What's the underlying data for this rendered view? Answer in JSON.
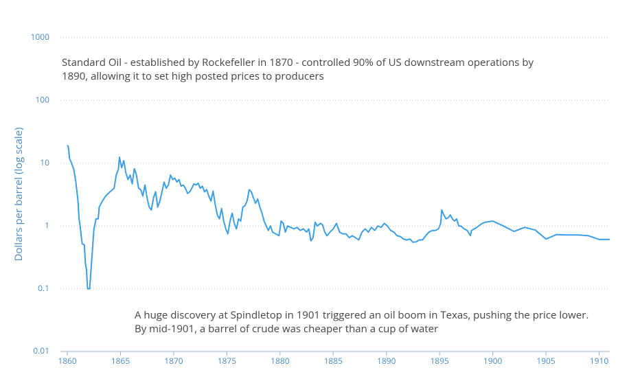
{
  "chart_data": {
    "type": "line",
    "y_label": "Dollars per barrel (log scale)",
    "annotations": [
      {
        "lines": [
          "Standard Oil - established by Rockefeller in 1870 - controlled 90% of US downstream operations by",
          "1890, allowing it to set high posted prices to producers"
        ]
      },
      {
        "lines": [
          "A huge discovery at Spindletop in 1901 triggered an oil boom in Texas, pushing the price lower.",
          "By mid-1901, a barrel of crude was cheaper than a cup of water"
        ]
      }
    ],
    "log_scale": true,
    "grid": true,
    "xlim": [
      1859.35,
      1911
    ],
    "ylim": [
      0.01,
      1000
    ],
    "xticks": [
      1860,
      1865,
      1870,
      1875,
      1880,
      1885,
      1890,
      1895,
      1900,
      1905,
      1910
    ],
    "yticks": [
      0.01,
      0.1,
      1,
      10,
      100,
      1000
    ],
    "color": "#3d9ee8",
    "x": [
      1860.0,
      1860.1,
      1860.2,
      1860.4,
      1860.6,
      1860.8,
      1861.0,
      1861.1,
      1861.2,
      1861.3,
      1861.4,
      1861.6,
      1861.7,
      1861.8,
      1861.9,
      1862.1,
      1862.3,
      1862.5,
      1862.7,
      1862.9,
      1863.0,
      1863.3,
      1863.6,
      1864.0,
      1864.4,
      1864.6,
      1864.8,
      1864.9,
      1865.1,
      1865.3,
      1865.5,
      1865.7,
      1865.9,
      1866.1,
      1866.3,
      1866.5,
      1866.7,
      1866.9,
      1867.1,
      1867.3,
      1867.5,
      1867.7,
      1867.9,
      1868.1,
      1868.3,
      1868.5,
      1868.7,
      1868.9,
      1869.1,
      1869.3,
      1869.5,
      1869.7,
      1869.9,
      1870.1,
      1870.3,
      1870.5,
      1870.7,
      1870.9,
      1871.1,
      1871.3,
      1871.5,
      1871.7,
      1871.9,
      1872.1,
      1872.3,
      1872.5,
      1872.7,
      1872.9,
      1873.1,
      1873.3,
      1873.5,
      1873.7,
      1873.9,
      1874.1,
      1874.3,
      1874.5,
      1874.7,
      1874.9,
      1875.1,
      1875.3,
      1875.5,
      1875.7,
      1875.9,
      1876.1,
      1876.3,
      1876.5,
      1876.7,
      1876.9,
      1877.1,
      1877.3,
      1877.5,
      1877.7,
      1877.9,
      1878.1,
      1878.3,
      1878.5,
      1878.7,
      1878.9,
      1879.1,
      1879.3,
      1879.6,
      1879.9,
      1880.1,
      1880.3,
      1880.5,
      1880.7,
      1881.0,
      1881.3,
      1881.6,
      1881.9,
      1882.2,
      1882.5,
      1882.7,
      1882.9,
      1883.1,
      1883.3,
      1883.5,
      1883.8,
      1884.0,
      1884.2,
      1884.4,
      1884.7,
      1885.0,
      1885.3,
      1885.6,
      1885.9,
      1886.2,
      1886.5,
      1886.8,
      1887.1,
      1887.4,
      1887.7,
      1888.0,
      1888.3,
      1888.6,
      1888.9,
      1889.2,
      1889.5,
      1889.8,
      1890.1,
      1890.4,
      1890.7,
      1891.0,
      1891.3,
      1891.6,
      1891.9,
      1892.2,
      1892.5,
      1892.8,
      1893.1,
      1893.4,
      1893.7,
      1894.0,
      1894.3,
      1894.6,
      1894.9,
      1895.1,
      1895.2,
      1895.4,
      1895.6,
      1895.8,
      1896.0,
      1896.2,
      1896.4,
      1896.6,
      1896.8,
      1897.0,
      1897.3,
      1897.6,
      1897.9,
      1898.0,
      1898.5,
      1899.0,
      1899.3,
      1900.0,
      1901.0,
      1902.0,
      1903.0,
      1904.0,
      1905.0,
      1906.0,
      1907.0,
      1908.0,
      1909.0,
      1910.0,
      1911.0
    ],
    "values": [
      19.5,
      18,
      12,
      10,
      8,
      5,
      2.5,
      1.3,
      1.0,
      0.7,
      0.52,
      0.5,
      0.25,
      0.2,
      0.1,
      0.1,
      0.3,
      0.9,
      1.3,
      1.3,
      2.0,
      2.5,
      3.0,
      3.5,
      4.0,
      6.5,
      8,
      12.5,
      8.5,
      11,
      7,
      5.5,
      6.5,
      4.7,
      8.2,
      6.5,
      4.0,
      3.8,
      3.0,
      4.5,
      2.8,
      2.0,
      1.8,
      2.8,
      3.5,
      2.0,
      2.5,
      3.5,
      5.0,
      4.0,
      4.5,
      6.5,
      5.5,
      5.8,
      5.0,
      5.5,
      4.3,
      4.5,
      4.0,
      3.3,
      3.5,
      4.0,
      4.7,
      4.5,
      4.8,
      4.0,
      4.3,
      3.5,
      3.8,
      3.0,
      2.5,
      3.6,
      2.2,
      1.5,
      1.3,
      1.9,
      1.2,
      0.9,
      0.75,
      1.2,
      1.6,
      1.1,
      0.9,
      1.3,
      1.2,
      2.0,
      2.1,
      2.5,
      3.8,
      3.5,
      2.8,
      2.3,
      2.7,
      2.0,
      1.6,
      1.2,
      1.0,
      0.85,
      1.0,
      0.8,
      0.75,
      0.7,
      1.2,
      1.1,
      0.8,
      1.0,
      0.95,
      0.9,
      0.95,
      0.85,
      0.9,
      0.8,
      0.9,
      0.58,
      0.65,
      1.15,
      1.0,
      1.1,
      1.05,
      0.8,
      0.7,
      0.8,
      0.9,
      1.1,
      0.8,
      0.75,
      0.75,
      0.65,
      0.7,
      0.65,
      0.6,
      0.8,
      0.9,
      0.8,
      0.95,
      0.85,
      1.0,
      0.95,
      1.1,
      1.0,
      0.85,
      0.8,
      0.7,
      0.68,
      0.62,
      0.6,
      0.62,
      0.55,
      0.56,
      0.6,
      0.6,
      0.7,
      0.8,
      0.85,
      0.85,
      0.9,
      1.1,
      1.8,
      1.5,
      1.3,
      1.35,
      1.5,
      1.3,
      1.2,
      1.3,
      1.0,
      1.0,
      0.9,
      0.85,
      0.7,
      0.85,
      0.95,
      1.1,
      1.15,
      1.2,
      1.0,
      0.82,
      0.95,
      0.86,
      0.62,
      0.73,
      0.72,
      0.72,
      0.7,
      0.61,
      0.61
    ]
  }
}
